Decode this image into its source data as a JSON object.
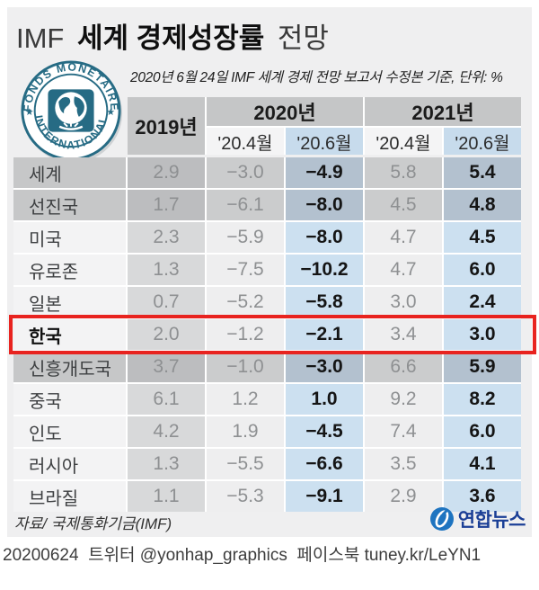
{
  "header": {
    "title_prefix": "IMF",
    "title_bold": "세계 경제성장률",
    "title_suffix": "전망",
    "subtitle": "2020년 6월 24일 IMF 세계 경제 전망 보고서 수정본 기준, 단위: %"
  },
  "imf_seal": {
    "top_text": "FONDS MONETAIRE",
    "bottom_text": "INTERNATIONAL",
    "star": "★",
    "color": "#266b84"
  },
  "table": {
    "year_column": "2019년",
    "group_2020": "2020년",
    "group_2021": "2021년",
    "subheaders": [
      "'20.4월",
      "'20.6월",
      "'20.4월",
      "'20.6월"
    ],
    "rows": [
      {
        "id": "world",
        "label": "세계",
        "values": [
          "2.9",
          "−3.0",
          "−4.9",
          "5.8",
          "5.4"
        ],
        "aggregate": true
      },
      {
        "id": "advanced",
        "label": "선진국",
        "values": [
          "1.7",
          "−6.1",
          "−8.0",
          "4.5",
          "4.8"
        ],
        "aggregate": true
      },
      {
        "id": "us",
        "label": "미국",
        "values": [
          "2.3",
          "−5.9",
          "−8.0",
          "4.7",
          "4.5"
        ]
      },
      {
        "id": "eurozone",
        "label": "유로존",
        "values": [
          "1.3",
          "−7.5",
          "−10.2",
          "4.7",
          "6.0"
        ]
      },
      {
        "id": "japan",
        "label": "일본",
        "values": [
          "0.7",
          "−5.2",
          "−5.8",
          "3.0",
          "2.4"
        ]
      },
      {
        "id": "korea",
        "label": "한국",
        "values": [
          "2.0",
          "−1.2",
          "−2.1",
          "3.4",
          "3.0"
        ],
        "highlight": true
      },
      {
        "id": "emerging",
        "label": "신흥개도국",
        "values": [
          "3.7",
          "−1.0",
          "−3.0",
          "6.6",
          "5.9"
        ],
        "aggregate": true
      },
      {
        "id": "china",
        "label": "중국",
        "values": [
          "6.1",
          "1.2",
          "1.0",
          "9.2",
          "8.2"
        ]
      },
      {
        "id": "india",
        "label": "인도",
        "values": [
          "4.2",
          "1.9",
          "−4.5",
          "7.4",
          "6.0"
        ]
      },
      {
        "id": "russia",
        "label": "러시아",
        "values": [
          "1.3",
          "−5.5",
          "−6.6",
          "3.5",
          "4.1"
        ]
      },
      {
        "id": "brazil",
        "label": "브라질",
        "values": [
          "1.1",
          "−5.3",
          "−9.1",
          "2.9",
          "3.6"
        ]
      }
    ]
  },
  "footer": {
    "source": "자료/ 국제통화기금(IMF)",
    "agency_name": "연합뉴스"
  },
  "credit": "20200624  트위터 @yonhap_graphics  페이스북 tuney.kr/LeYN1",
  "colors": {
    "panel_bg": "#efeff0",
    "header_gray": "#c5c6c7",
    "june_column_blue": "#c7dbec",
    "june_cell_blue": "#cce0f0",
    "aggregate_june_blue": "#b3c1cf",
    "highlight_red": "#e8231f",
    "imf_teal": "#266b84",
    "yonhap_blue": "#1e74c0",
    "yonhap_navy": "#1b3f96"
  },
  "chart_data": {
    "type": "table",
    "title": "IMF 세계 경제성장률 전망",
    "subtitle": "2020년 6월 24일 IMF 세계 경제 전망 보고서 수정본 기준",
    "unit": "%",
    "columns": [
      "2019년",
      "2020년 '20.4월 전망",
      "2020년 '20.6월 전망",
      "2021년 '20.4월 전망",
      "2021년 '20.6월 전망"
    ],
    "rows": [
      {
        "label": "세계",
        "values": [
          2.9,
          -3.0,
          -4.9,
          5.8,
          5.4
        ]
      },
      {
        "label": "선진국",
        "values": [
          1.7,
          -6.1,
          -8.0,
          4.5,
          4.8
        ]
      },
      {
        "label": "미국",
        "values": [
          2.3,
          -5.9,
          -8.0,
          4.7,
          4.5
        ]
      },
      {
        "label": "유로존",
        "values": [
          1.3,
          -7.5,
          -10.2,
          4.7,
          6.0
        ]
      },
      {
        "label": "일본",
        "values": [
          0.7,
          -5.2,
          -5.8,
          3.0,
          2.4
        ]
      },
      {
        "label": "한국",
        "values": [
          2.0,
          -1.2,
          -2.1,
          3.4,
          3.0
        ]
      },
      {
        "label": "신흥개도국",
        "values": [
          3.7,
          -1.0,
          -3.0,
          6.6,
          5.9
        ]
      },
      {
        "label": "중국",
        "values": [
          6.1,
          1.2,
          1.0,
          9.2,
          8.2
        ]
      },
      {
        "label": "인도",
        "values": [
          4.2,
          1.9,
          -4.5,
          7.4,
          6.0
        ]
      },
      {
        "label": "러시아",
        "values": [
          1.3,
          -5.5,
          -6.6,
          3.5,
          4.1
        ]
      },
      {
        "label": "브라질",
        "values": [
          1.1,
          -5.3,
          -9.1,
          2.9,
          3.6
        ]
      }
    ],
    "highlighted_row": "한국",
    "source": "국제통화기금(IMF)"
  }
}
